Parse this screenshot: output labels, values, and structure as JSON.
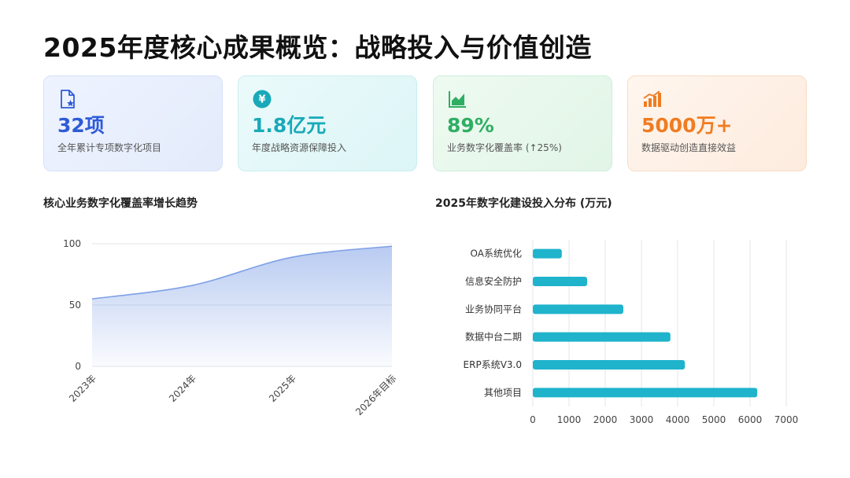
{
  "page": {
    "title": "2025年度核心成果概览：战略投入与价值创造"
  },
  "cards": [
    {
      "icon": "document-star-icon",
      "value": "32项",
      "label": "全年累计专项数字化项目",
      "color": "#2f5bd8"
    },
    {
      "icon": "yuan-coin-icon",
      "value": "1.8亿元",
      "label": "年度战略资源保障投入",
      "color": "#19a9b8"
    },
    {
      "icon": "area-chart-icon",
      "value": "89%",
      "label": "业务数字化覆盖率 (↑25%)",
      "color": "#2fae63"
    },
    {
      "icon": "bar-trend-icon",
      "value": "5000万+",
      "label": "数据驱动创造直接效益",
      "color": "#f07c22"
    }
  ],
  "chart_data": [
    {
      "type": "area",
      "title": "核心业务数字化覆盖率增长趋势",
      "categories": [
        "2023年",
        "2024年",
        "2025年",
        "2026年目标"
      ],
      "values": [
        55,
        66,
        89,
        98
      ],
      "ylim": [
        0,
        100
      ],
      "yticks": [
        "0",
        "50",
        "100"
      ],
      "xlabel": "",
      "ylabel": "",
      "grid": true,
      "color": "#7ea0e6"
    },
    {
      "type": "bar",
      "orientation": "horizontal",
      "title": "2025年数字化建设投入分布 (万元)",
      "categories": [
        "OA系统优化",
        "信息安全防护",
        "业务协同平台",
        "数据中台二期",
        "ERP系统V3.0",
        "其他项目"
      ],
      "values": [
        800,
        1500,
        2500,
        3800,
        4200,
        6200
      ],
      "xlim": [
        0,
        7000
      ],
      "xticks": [
        "0",
        "1000",
        "2000",
        "3000",
        "4000",
        "5000",
        "6000",
        "7000"
      ],
      "xlabel": "",
      "ylabel": "",
      "grid": true,
      "color": "#1fb3cc"
    }
  ]
}
